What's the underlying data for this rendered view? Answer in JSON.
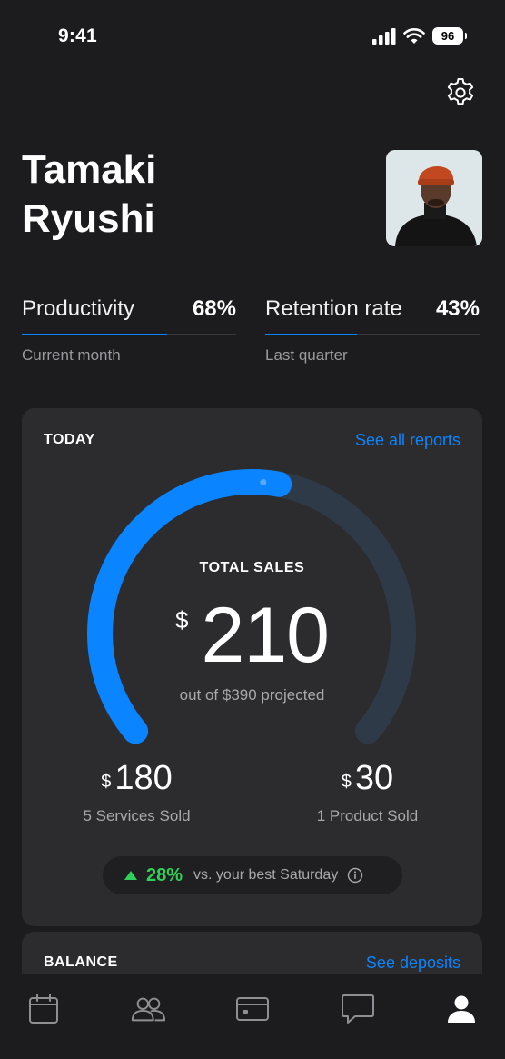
{
  "status_bar": {
    "time": "9:41",
    "battery": "96"
  },
  "profile": {
    "first_name": "Tamaki",
    "last_name": "Ryushi"
  },
  "stats": [
    {
      "label": "Productivity",
      "value": "68%",
      "sub": "Current month",
      "fraction": 0.68
    },
    {
      "label": "Retention rate",
      "value": "43%",
      "sub": "Last quarter",
      "fraction": 0.43
    }
  ],
  "today": {
    "title": "TODAY",
    "link": "See all reports",
    "gauge_label": "TOTAL SALES",
    "currency": "$",
    "total": "210",
    "projected_text": "out of $390 projected",
    "progress_fraction": 0.54,
    "services": {
      "currency": "$",
      "amount": "180",
      "label": "5 Services Sold"
    },
    "products": {
      "currency": "$",
      "amount": "30",
      "label": "1 Product Sold"
    },
    "comparison": {
      "percent": "28%",
      "text": "vs. your best Saturday"
    }
  },
  "balance": {
    "title": "BALANCE",
    "link": "See deposits"
  },
  "tabbar": {
    "items": [
      "calendar-icon",
      "people-icon",
      "card-icon",
      "chat-icon",
      "profile-icon"
    ],
    "active": "profile-icon"
  },
  "colors": {
    "accent": "#0a84ff",
    "positive": "#30d158",
    "background": "#1c1c1e",
    "card": "#2c2c2e"
  }
}
